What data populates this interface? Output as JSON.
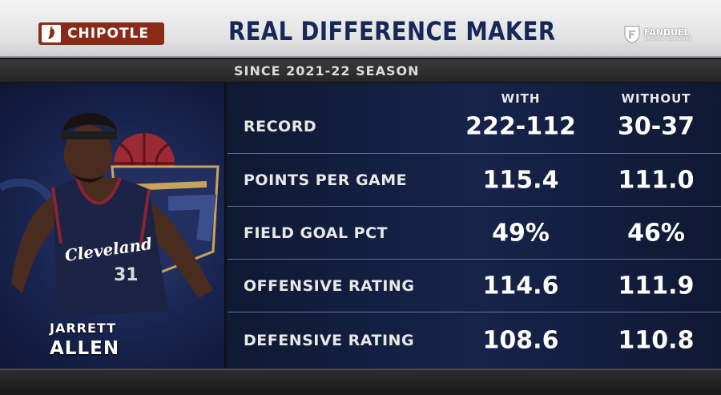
{
  "header": {
    "sponsor": "CHIPOTLE",
    "title": "REAL DIFFERENCE MAKER",
    "network_name": "FANDUEL",
    "network_sub": "SPORTS NETWORK"
  },
  "subheader": {
    "text": "SINCE 2021-22 SEASON"
  },
  "player": {
    "first_name": "JARRETT",
    "last_name": "ALLEN",
    "jersey_text": "Cleveland",
    "jersey_number": "31",
    "jersey_color": "#1b2445",
    "accent_color": "#8a2432"
  },
  "stats": {
    "col_with": "WITH",
    "col_without": "WITHOUT",
    "rows": [
      {
        "label": "RECORD",
        "with": "222-112",
        "without": "30-37"
      },
      {
        "label": "POINTS PER GAME",
        "with": "115.4",
        "without": "111.0"
      },
      {
        "label": "FIELD GOAL PCT",
        "with": "49%",
        "without": "46%"
      },
      {
        "label": "OFFENSIVE RATING",
        "with": "114.6",
        "without": "111.9"
      },
      {
        "label": "DEFENSIVE RATING",
        "with": "108.6",
        "without": "110.8"
      }
    ]
  }
}
